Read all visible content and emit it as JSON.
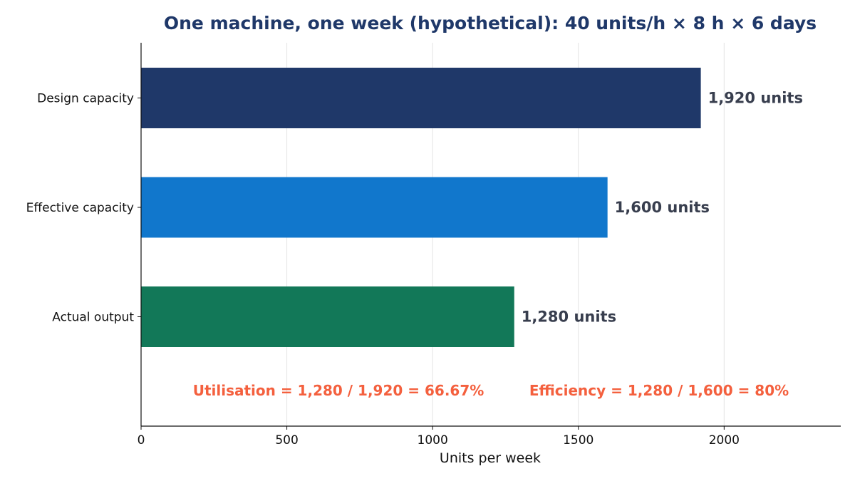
{
  "chart_data": {
    "type": "bar",
    "orientation": "horizontal",
    "title": "One machine, one week (hypothetical): 40 units/h × 8 h × 6 days",
    "xlabel": "Units per week",
    "ylabel": "",
    "categories": [
      "Design capacity",
      "Effective capacity",
      "Actual output"
    ],
    "values": [
      1920,
      1600,
      1280
    ],
    "data_labels": [
      "1,920 units",
      "1,600 units",
      "1,280 units"
    ],
    "xlim": [
      0,
      2400
    ],
    "xticks": [
      0,
      500,
      1000,
      1500,
      2000
    ],
    "grid": "vertical",
    "legend": "none",
    "annotations": [
      "Utilisation = 1,280 / 1,920 = 66.67%",
      "Efficiency = 1,280 / 1,600 = 80%"
    ]
  },
  "colors": {
    "title": "#1f3869",
    "bars": [
      "#1f3869",
      "#1177cc",
      "#127858"
    ],
    "data_label": "#383e4e",
    "annotation": "#f4603e",
    "grid": "#e4e4e4",
    "axis": "#111111"
  }
}
